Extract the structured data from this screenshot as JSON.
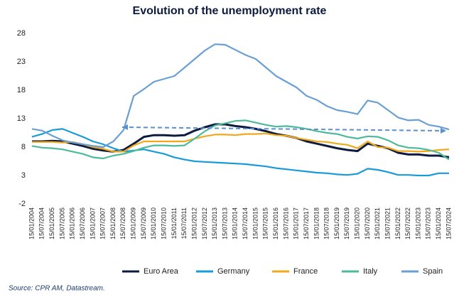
{
  "chart_data": {
    "type": "line",
    "title": "Evolution of the unemployment  rate",
    "source": "Source: CPR AM, Datastream.",
    "categories": [
      "15/01/2004",
      "15/07/2004",
      "15/01/2005",
      "15/07/2005",
      "15/01/2006",
      "15/07/2006",
      "15/01/2007",
      "15/07/2007",
      "15/01/2008",
      "15/07/2008",
      "15/01/2009",
      "15/07/2009",
      "15/01/2010",
      "15/07/2010",
      "15/01/2011",
      "15/07/2011",
      "15/01/2012",
      "15/07/2012",
      "15/01/2013",
      "15/07/2013",
      "15/01/2014",
      "15/07/2014",
      "15/01/2015",
      "15/07/2015",
      "15/01/2016",
      "15/07/2016",
      "15/01/2017",
      "15/07/2017",
      "15/01/2018",
      "15/07/2018",
      "15/01/2019",
      "15/07/2019",
      "15/01/2020",
      "15/07/2020",
      "15/01/2021",
      "15/07/2021",
      "15/01/2022",
      "15/07/2022",
      "15/01/2023",
      "15/07/2023",
      "15/01/2024",
      "15/07/2024"
    ],
    "series": [
      {
        "name": "Euro Area",
        "color": "#0d1b3e",
        "values": [
          9,
          9,
          9.1,
          9.0,
          8.6,
          8.2,
          7.7,
          7.4,
          7.2,
          7.5,
          8.6,
          9.8,
          10.1,
          10.1,
          10.0,
          10.1,
          10.9,
          11.5,
          12.0,
          12.0,
          11.7,
          11.5,
          11.2,
          10.8,
          10.3,
          10.0,
          9.6,
          9.0,
          8.6,
          8.2,
          7.8,
          7.5,
          7.3,
          8.6,
          8.2,
          7.8,
          7.0,
          6.7,
          6.7,
          6.5,
          6.5,
          6.2
        ]
      },
      {
        "name": "Germany",
        "color": "#1a9bd7",
        "values": [
          9.8,
          10.3,
          11.0,
          11.2,
          10.5,
          9.8,
          9.0,
          8.5,
          7.8,
          7.2,
          7.4,
          7.6,
          7.2,
          6.8,
          6.2,
          5.8,
          5.5,
          5.4,
          5.3,
          5.2,
          5.1,
          5.0,
          4.8,
          4.6,
          4.3,
          4.1,
          3.9,
          3.7,
          3.5,
          3.4,
          3.2,
          3.1,
          3.3,
          4.2,
          4.0,
          3.6,
          3.1,
          3.1,
          3.0,
          3.0,
          3.4,
          3.4
        ]
      },
      {
        "name": "France",
        "color": "#f2a81d",
        "values": [
          8.9,
          8.9,
          8.9,
          8.8,
          8.9,
          8.5,
          8.0,
          7.7,
          7.2,
          7.2,
          8.3,
          9.0,
          9.0,
          9.0,
          9.0,
          9.0,
          9.5,
          9.9,
          10.2,
          10.2,
          10.1,
          10.3,
          10.3,
          10.4,
          10.1,
          10.0,
          9.6,
          9.3,
          9.0,
          8.9,
          8.6,
          8.4,
          7.8,
          9.0,
          8.0,
          7.9,
          7.3,
          7.3,
          7.2,
          7.3,
          7.5,
          7.6
        ]
      },
      {
        "name": "Italy",
        "color": "#4dbb9a",
        "values": [
          8.2,
          7.9,
          7.8,
          7.6,
          7.2,
          6.8,
          6.2,
          6.0,
          6.5,
          6.8,
          7.3,
          7.9,
          8.3,
          8.3,
          8.2,
          8.3,
          9.5,
          10.8,
          11.8,
          12.2,
          12.6,
          12.7,
          12.3,
          11.9,
          11.6,
          11.7,
          11.5,
          11.2,
          10.8,
          10.5,
          10.3,
          9.8,
          9.5,
          9.9,
          9.8,
          9.2,
          8.3,
          7.9,
          7.8,
          7.5,
          7.0,
          5.8
        ]
      },
      {
        "name": "Spain",
        "color": "#6a9fd4",
        "values": [
          11.2,
          10.9,
          10.0,
          9.2,
          8.8,
          8.5,
          8.2,
          8.0,
          9.0,
          11.0,
          17.0,
          18.2,
          19.5,
          20.0,
          20.5,
          22.0,
          23.5,
          25.0,
          26.1,
          26.0,
          25.1,
          24.2,
          23.5,
          22.0,
          20.5,
          19.5,
          18.5,
          17.0,
          16.3,
          15.2,
          14.5,
          14.2,
          13.8,
          16.2,
          15.8,
          14.5,
          13.2,
          12.7,
          12.8,
          11.9,
          11.6,
          11.1
        ]
      }
    ],
    "ylim": [
      -2,
      28
    ],
    "yticks": [
      -2,
      3,
      8,
      13,
      18,
      23,
      28
    ],
    "grid": false,
    "legend": "bottom"
  }
}
